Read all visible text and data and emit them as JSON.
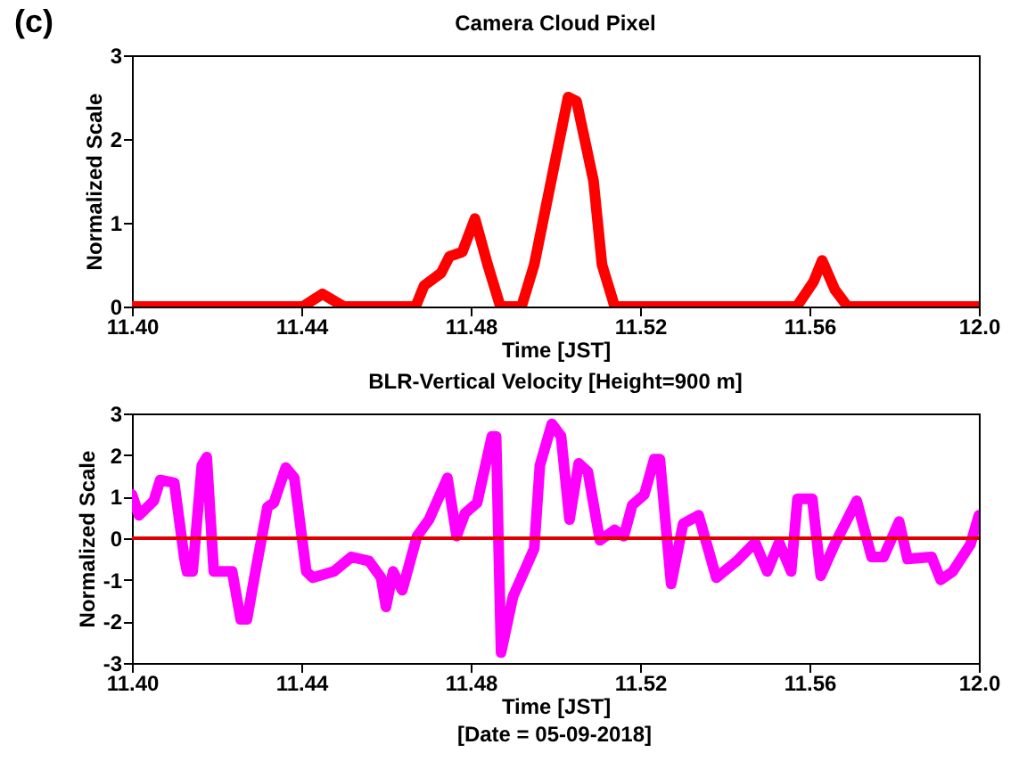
{
  "chart_data": [
    {
      "type": "line",
      "title": "Camera Cloud Pixel",
      "xlabel": "Time [JST]",
      "ylabel": "Normalized Scale",
      "annotations": [
        "(c)"
      ],
      "xlim": [
        "2018-09-05T11:40",
        "2018-09-05T12:00"
      ],
      "xticks": [
        {
          "value": "2018-09-05T11:40",
          "label": "11.40"
        },
        {
          "value": "2018-09-05T11:44",
          "label": "11.44"
        },
        {
          "value": "2018-09-05T11:48",
          "label": "11.48"
        },
        {
          "value": "2018-09-05T11:52",
          "label": "11.52"
        },
        {
          "value": "2018-09-05T11:56",
          "label": "11.56"
        },
        {
          "value": "2018-09-05T12:00",
          "label": "12.0"
        }
      ],
      "ylim": [
        0,
        3
      ],
      "yticks": [
        0,
        1,
        2,
        3
      ],
      "series": [
        {
          "color": "#ff0000",
          "x": [
            "2018-09-05T11:40:00",
            "2018-09-05T11:44:02",
            "2018-09-05T11:44:30",
            "2018-09-05T11:45:00",
            "2018-09-05T11:46:42",
            "2018-09-05T11:46:54",
            "2018-09-05T11:47:18",
            "2018-09-05T11:47:30",
            "2018-09-05T11:47:48",
            "2018-09-05T11:48:06",
            "2018-09-05T11:48:24",
            "2018-09-05T11:48:42",
            "2018-09-05T11:49:12",
            "2018-09-05T11:49:30",
            "2018-09-05T11:49:54",
            "2018-09-05T11:50:18",
            "2018-09-05T11:50:30",
            "2018-09-05T11:50:54",
            "2018-09-05T11:51:06",
            "2018-09-05T11:51:24",
            "2018-09-05T11:55:42",
            "2018-09-05T11:56:06",
            "2018-09-05T11:56:18",
            "2018-09-05T11:56:36",
            "2018-09-05T11:56:54",
            "2018-09-05T12:00:00"
          ],
          "values": [
            0,
            0,
            0.15,
            0,
            0,
            0.25,
            0.4,
            0.6,
            0.65,
            1.05,
            0.5,
            0,
            0,
            0.5,
            1.5,
            2.5,
            2.45,
            1.5,
            0.5,
            0,
            0,
            0.3,
            0.55,
            0.2,
            0,
            0
          ]
        }
      ]
    },
    {
      "type": "line",
      "title": "BLR-Vertical Velocity [Height=900 m]",
      "xlabel": "Time [JST]",
      "ylabel": "Normalized Scale",
      "annotations": [
        "[Date = 05-09-2018]"
      ],
      "xlim": [
        "2018-09-05T11:40",
        "2018-09-05T12:00"
      ],
      "xticks": [
        {
          "value": "2018-09-05T11:40",
          "label": "11.40"
        },
        {
          "value": "2018-09-05T11:44",
          "label": "11.44"
        },
        {
          "value": "2018-09-05T11:48",
          "label": "11.48"
        },
        {
          "value": "2018-09-05T11:52",
          "label": "11.52"
        },
        {
          "value": "2018-09-05T11:56",
          "label": "11.56"
        },
        {
          "value": "2018-09-05T12:00",
          "label": "12.0"
        }
      ],
      "ylim": [
        -3,
        3
      ],
      "yticks": [
        -3,
        -2,
        -1,
        0,
        1,
        2,
        3
      ],
      "ref_lines": [
        {
          "axis": "y",
          "value": 0,
          "color": "#e00000"
        }
      ],
      "series": [
        {
          "color": "#ff00ff",
          "x": [
            "2018-09-05T11:40:00",
            "2018-09-05T11:40:10",
            "2018-09-05T11:40:31",
            "2018-09-05T11:40:40",
            "2018-09-05T11:41:00",
            "2018-09-05T11:41:14",
            "2018-09-05T11:41:18",
            "2018-09-05T11:41:26",
            "2018-09-05T11:41:39",
            "2018-09-05T11:41:46",
            "2018-09-05T11:41:56",
            "2018-09-05T11:42:22",
            "2018-09-05T11:42:34",
            "2018-09-05T11:42:43",
            "2018-09-05T11:42:55",
            "2018-09-05T11:43:12",
            "2018-09-05T11:43:21",
            "2018-09-05T11:43:38",
            "2018-09-05T11:43:50",
            "2018-09-05T11:44:07",
            "2018-09-05T11:44:16",
            "2018-09-05T11:44:46",
            "2018-09-05T11:45:11",
            "2018-09-05T11:45:36",
            "2018-09-05T11:45:53",
            "2018-09-05T11:46:00",
            "2018-09-05T11:46:10",
            "2018-09-05T11:46:23",
            "2018-09-05T11:46:44",
            "2018-09-05T11:47:01",
            "2018-09-05T11:47:27",
            "2018-09-05T11:47:40",
            "2018-09-05T11:47:52",
            "2018-09-05T11:48:09",
            "2018-09-05T11:48:30",
            "2018-09-05T11:48:36",
            "2018-09-05T11:48:43",
            "2018-09-05T11:49:00",
            "2018-09-05T11:49:30",
            "2018-09-05T11:49:38",
            "2018-09-05T11:49:55",
            "2018-09-05T11:50:08",
            "2018-09-05T11:50:20",
            "2018-09-05T11:50:33",
            "2018-09-05T11:50:46",
            "2018-09-05T11:51:03",
            "2018-09-05T11:51:24",
            "2018-09-05T11:51:37",
            "2018-09-05T11:51:49",
            "2018-09-05T11:52:06",
            "2018-09-05T11:52:20",
            "2018-09-05T11:52:28",
            "2018-09-05T11:52:44",
            "2018-09-05T11:53:01",
            "2018-09-05T11:53:23",
            "2018-09-05T11:53:48",
            "2018-09-05T11:54:17",
            "2018-09-05T11:54:43",
            "2018-09-05T11:55:00",
            "2018-09-05T11:55:17",
            "2018-09-05T11:55:34",
            "2018-09-05T11:55:43",
            "2018-09-05T11:56:04",
            "2018-09-05T11:56:16",
            "2018-09-05T11:56:37",
            "2018-09-05T11:57:07",
            "2018-09-05T11:57:28",
            "2018-09-05T11:57:45",
            "2018-09-05T11:58:07",
            "2018-09-05T11:58:19",
            "2018-09-05T11:58:53",
            "2018-09-05T11:59:06",
            "2018-09-05T11:59:23",
            "2018-09-05T11:59:48",
            "2018-09-05T12:00:00"
          ],
          "values": [
            1.05,
            0.55,
            0.9,
            1.4,
            1.33,
            -0.45,
            -0.8,
            -0.8,
            1.75,
            1.95,
            -0.8,
            -0.8,
            -1.95,
            -1.95,
            -0.8,
            0.75,
            0.85,
            1.7,
            1.45,
            -0.8,
            -0.95,
            -0.8,
            -0.45,
            -0.55,
            -0.95,
            -1.65,
            -0.8,
            -1.25,
            0.05,
            0.45,
            1.45,
            0.05,
            0.6,
            0.85,
            2.45,
            2.45,
            -2.75,
            -1.4,
            -0.25,
            1.75,
            2.75,
            2.45,
            0.45,
            1.8,
            1.6,
            -0.05,
            0.2,
            0.05,
            0.8,
            1.05,
            1.9,
            1.9,
            -1.1,
            0.35,
            0.55,
            -0.95,
            -0.55,
            -0.1,
            -0.8,
            -0.1,
            -0.8,
            0.95,
            0.95,
            -0.9,
            -0.1,
            0.9,
            -0.45,
            -0.45,
            0.4,
            -0.5,
            -0.45,
            -1.0,
            -0.8,
            -0.15,
            0.55
          ]
        }
      ]
    }
  ]
}
